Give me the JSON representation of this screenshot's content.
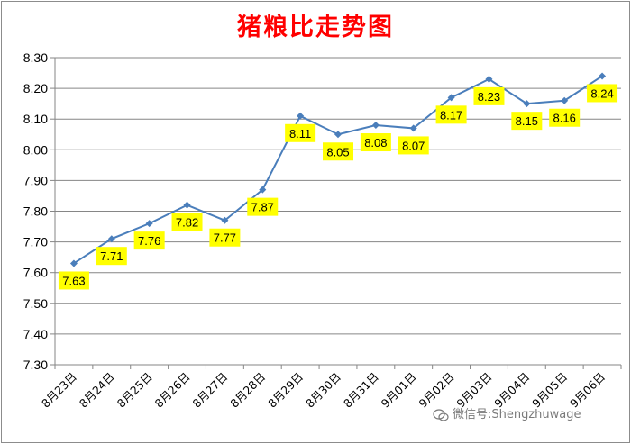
{
  "chart_data": {
    "type": "line",
    "title": "猪粮比走势图",
    "categories": [
      "8月23日",
      "8月24日",
      "8月25日",
      "8月26日",
      "8月27日",
      "8月28日",
      "8月29日",
      "8月30日",
      "8月31日",
      "9月01日",
      "9月02日",
      "9月03日",
      "9月04日",
      "9月05日",
      "9月06日"
    ],
    "series": [
      {
        "values": [
          7.63,
          7.71,
          7.76,
          7.82,
          7.77,
          7.87,
          8.11,
          8.05,
          8.08,
          8.07,
          8.17,
          8.23,
          8.15,
          8.16,
          8.24
        ]
      }
    ],
    "yticks": [
      "7.30",
      "7.40",
      "7.50",
      "7.60",
      "7.70",
      "7.80",
      "7.90",
      "8.00",
      "8.10",
      "8.20",
      "8.30"
    ],
    "ylim": [
      7.3,
      8.3
    ],
    "grid": true,
    "legend": "none",
    "colors": {
      "line": "#4a7ebb",
      "label_bg": "#ffff00",
      "title": "#ff0000"
    }
  },
  "watermark": {
    "text": "微信号:Shengzhuwage",
    "icon": "wechat-icon"
  }
}
